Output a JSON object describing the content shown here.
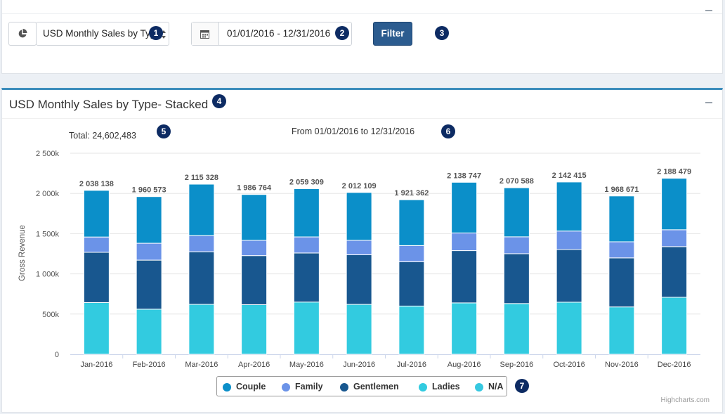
{
  "filters": {
    "report_select_value": "USD Monthly Sales by Type",
    "date_range_value": "01/01/2016 - 12/31/2016",
    "filter_button_label": "Filter"
  },
  "annotations": [
    "1",
    "2",
    "3",
    "4",
    "5",
    "6",
    "7"
  ],
  "panel": {
    "title": "USD Monthly Sales by Type- Stacked",
    "total_text": "Total: 24,602,483",
    "range_text": "From 01/01/2016 to 12/31/2016",
    "credits": "Highcharts.com"
  },
  "icons": {
    "chart_type": "pie-chart-icon",
    "calendar": "calendar-icon",
    "select_arrows": "select-arrows-icon",
    "collapse": "minus-icon"
  },
  "chart_data": {
    "type": "bar",
    "stacked": true,
    "ylabel": "Gross Revenue",
    "xlabel": "",
    "ylim": [
      0,
      2500000
    ],
    "yticks": [
      0,
      500000,
      1000000,
      1500000,
      2000000,
      2500000
    ],
    "ytick_labels": [
      "0",
      "500k",
      "1 000k",
      "1 500k",
      "2 000k",
      "2 500k"
    ],
    "grid": true,
    "legend_position": "bottom-center",
    "categories": [
      "Jan-2016",
      "Feb-2016",
      "Mar-2016",
      "Apr-2016",
      "May-2016",
      "Jun-2016",
      "Jul-2016",
      "Aug-2016",
      "Sep-2016",
      "Oct-2016",
      "Nov-2016",
      "Dec-2016"
    ],
    "totals": [
      2038138,
      1960573,
      2115328,
      1986764,
      2059309,
      2012109,
      1921362,
      2138747,
      2070588,
      2142415,
      1968671,
      2188479
    ],
    "total_labels": [
      "2 038 138",
      "1 960 573",
      "2 115 328",
      "1 986 764",
      "2 059 309",
      "2 012 109",
      "1 921 362",
      "2 138 747",
      "2 070 588",
      "2 142 415",
      "1 968 671",
      "2 188 479"
    ],
    "series": [
      {
        "name": "Couple",
        "color": "#0b8fc9",
        "values": [
          580000,
          580000,
          640000,
          570000,
          600000,
          595000,
          570000,
          630000,
          610000,
          610000,
          570000,
          640000
        ]
      },
      {
        "name": "Family",
        "color": "#6b93e8",
        "values": [
          190000,
          210000,
          200000,
          190000,
          200000,
          180000,
          200000,
          220000,
          210000,
          230000,
          200000,
          210000
        ]
      },
      {
        "name": "Gentlemen",
        "color": "#18578f",
        "values": [
          625000,
          610000,
          655000,
          610000,
          610000,
          617000,
          552000,
          650000,
          620000,
          655000,
          610000,
          630000
        ]
      },
      {
        "name": "Ladies",
        "color": "#32cbe0",
        "values": [
          643138,
          560573,
          620328,
          616764,
          649309,
          620109,
          599362,
          638747,
          630588,
          647415,
          588671,
          708479
        ]
      },
      {
        "name": "N/A",
        "color": "#36c8e0",
        "values": [
          0,
          0,
          0,
          0,
          0,
          0,
          0,
          0,
          0,
          0,
          0,
          0
        ]
      }
    ]
  }
}
